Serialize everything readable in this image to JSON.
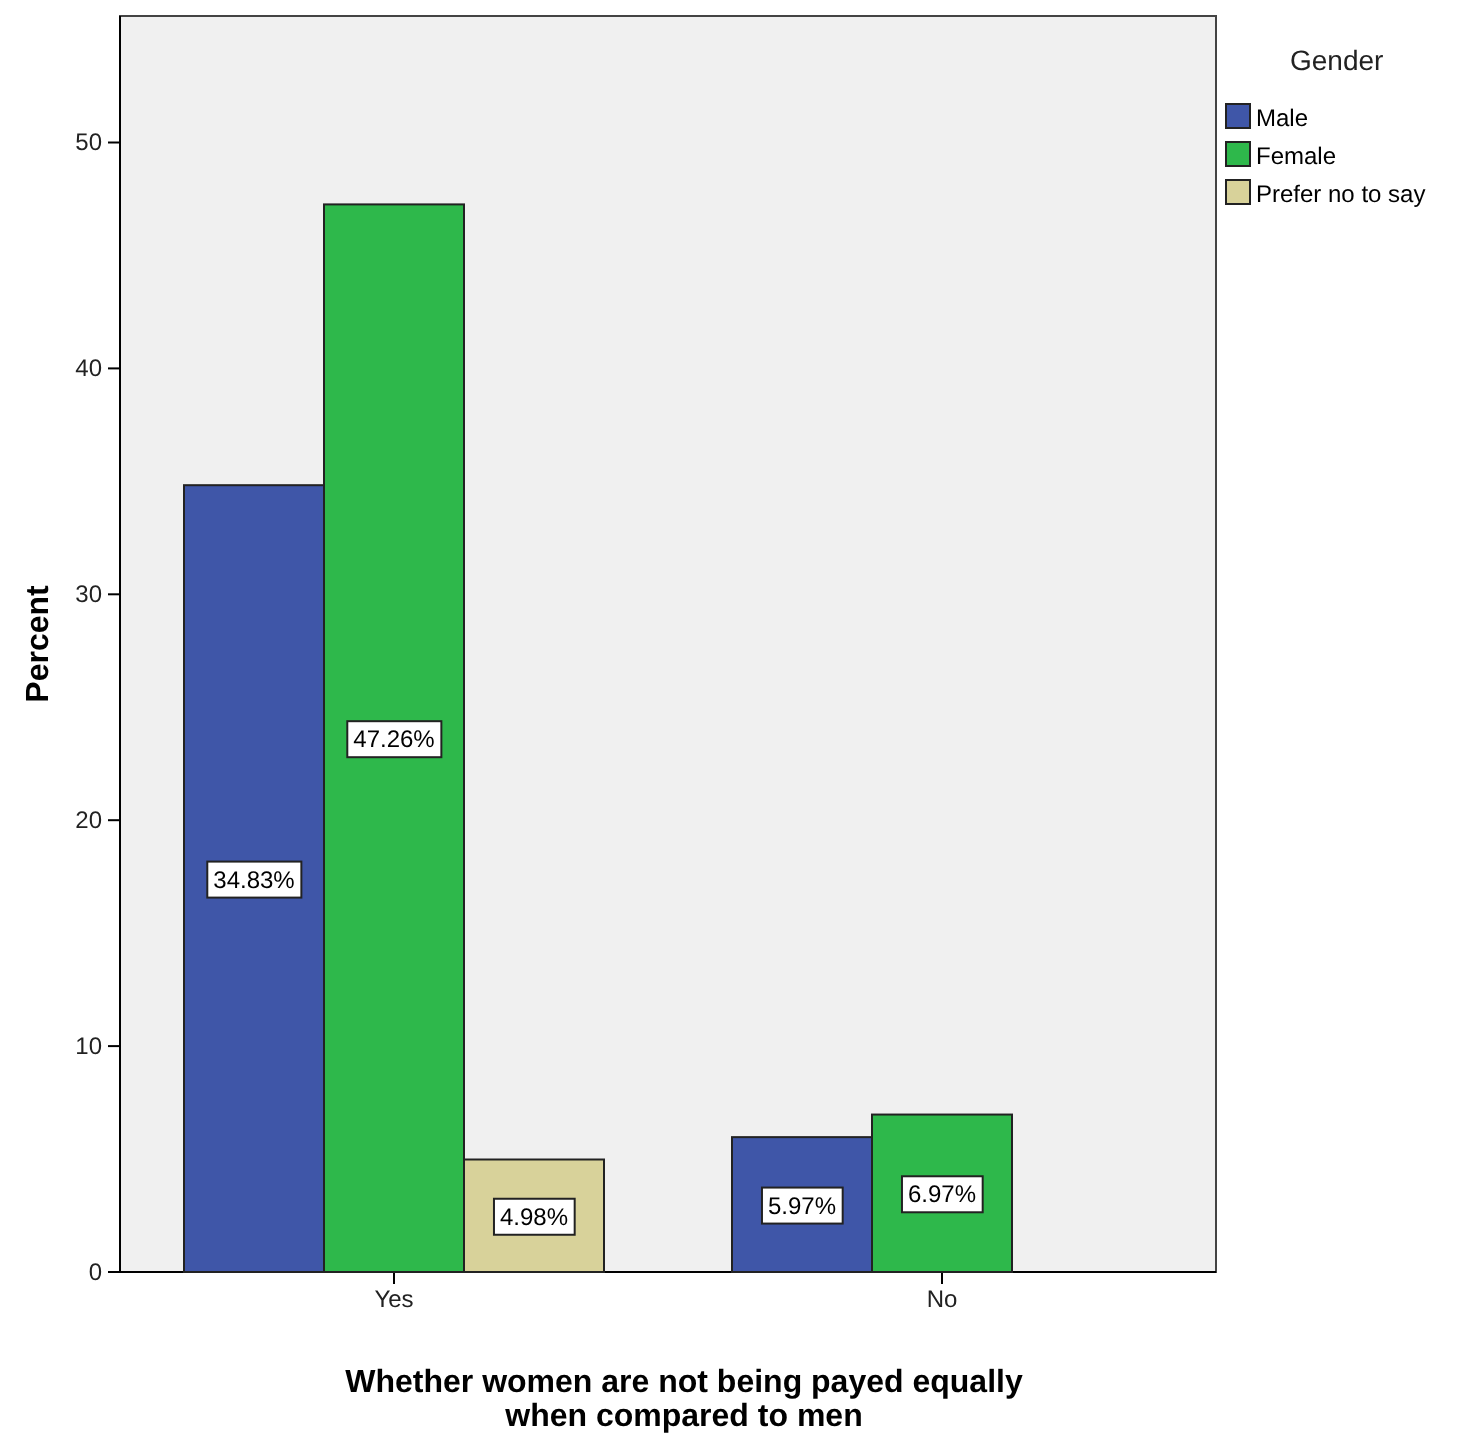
{
  "chart_data": {
    "type": "bar",
    "xlabel": "Whether women are not being payed equally when compared to men",
    "ylabel": "Percent",
    "legend_title": "Gender",
    "categories": [
      "Yes",
      "No"
    ],
    "series": [
      {
        "name": "Male",
        "color": "#3f56a8",
        "values": [
          34.83,
          5.97
        ],
        "value_labels": [
          "34.83%",
          "5.97%"
        ]
      },
      {
        "name": "Female",
        "color": "#2eb84b",
        "values": [
          47.26,
          6.97
        ],
        "value_labels": [
          "47.26%",
          "6.97%"
        ]
      },
      {
        "name": "Prefer no to say",
        "color": "#d8d29a",
        "values": [
          4.98,
          null
        ],
        "value_labels": [
          "4.98%",
          null
        ]
      }
    ],
    "ylim": [
      0,
      55.6
    ],
    "yticks": [
      0,
      10,
      20,
      30,
      40,
      50
    ],
    "grid": false,
    "legend": "right"
  }
}
